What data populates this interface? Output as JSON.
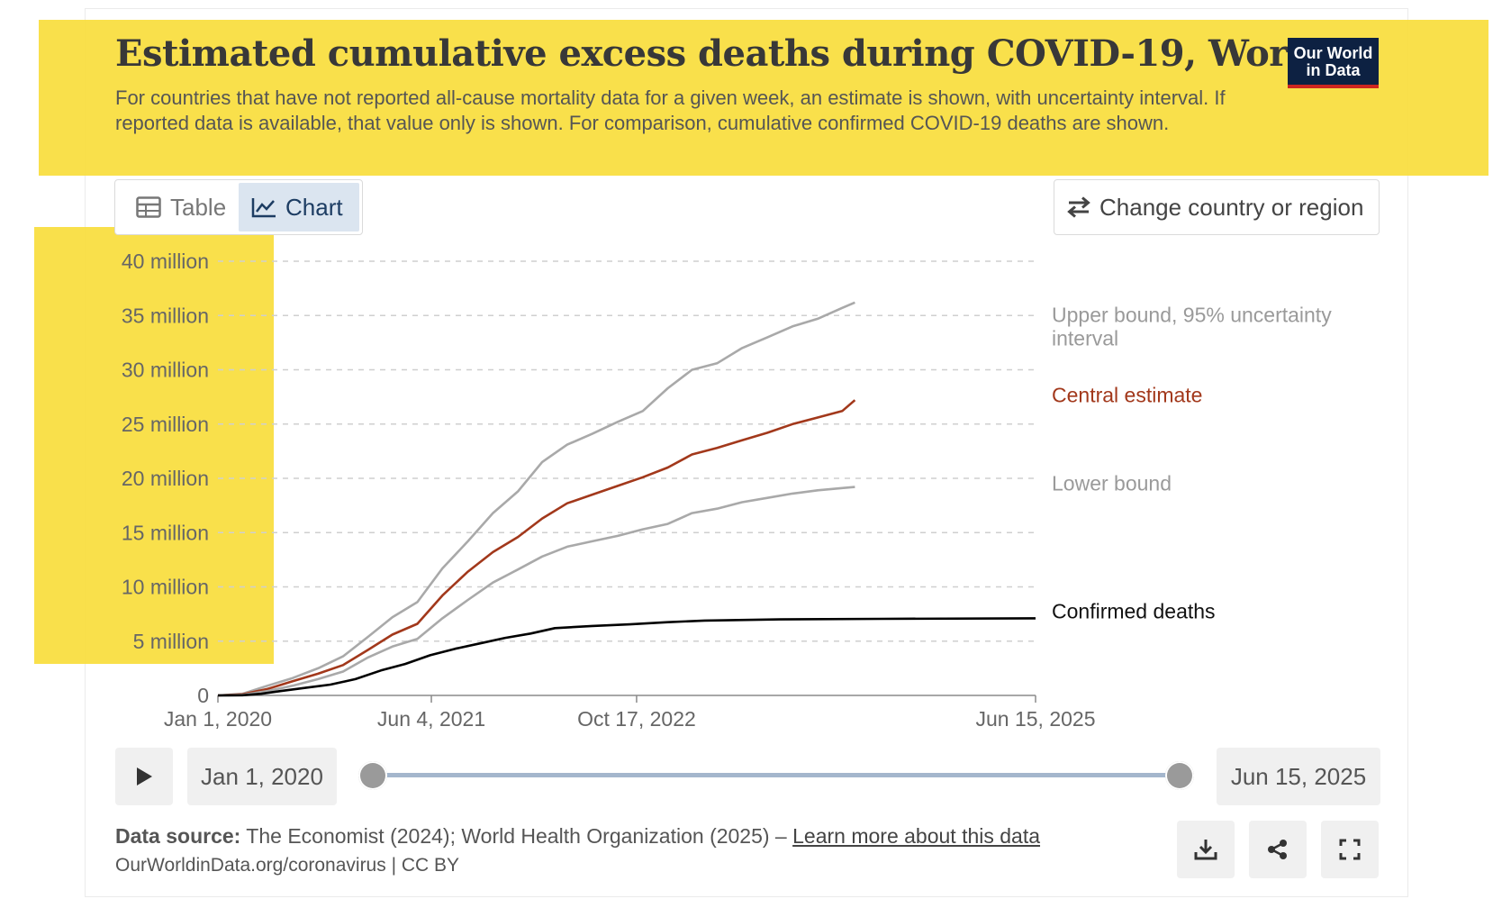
{
  "header": {
    "title": "Estimated cumulative excess deaths during COVID-19, World",
    "subtitle": "For countries that have not reported all-cause mortality data for a given week, an estimate is shown, with uncertainty interval. If reported data is available, that value only is shown. For comparison, cumulative confirmed COVID-19 deaths are shown.",
    "logo_line1": "Our World",
    "logo_line2": "in Data"
  },
  "tabs": {
    "table": "Table",
    "chart": "Chart",
    "active": "Chart"
  },
  "change_region_label": "Change country or region",
  "timeline": {
    "start": "Jan 1, 2020",
    "end": "Jun 15, 2025"
  },
  "footer": {
    "source_label": "Data source:",
    "source_text": " The Economist (2024); World Health Organization (2025) – ",
    "learn_more": "Learn more about this data",
    "credit": "OurWorldinData.org/coronavirus | CC BY"
  },
  "colors": {
    "highlight": "#f9dd3c",
    "upper": "#a9a9a9",
    "central": "#a2381b",
    "lower": "#a9a9a9",
    "confirmed": "#000000",
    "logo_bg": "#0d2142",
    "logo_accent": "#ce261e"
  },
  "icons": [
    "table-icon",
    "line-chart-icon",
    "swap-arrows-icon",
    "play-icon",
    "download-icon",
    "share-icon",
    "fullscreen-icon"
  ],
  "chart_data": {
    "type": "line",
    "title": "Estimated cumulative excess deaths during COVID-19, World",
    "xlabel": "",
    "ylabel": "",
    "x_type": "date",
    "xlim": [
      "2020-01-01",
      "2025-06-15"
    ],
    "ylim": [
      0,
      40000000
    ],
    "y_ticks": [
      0,
      5000000,
      10000000,
      15000000,
      20000000,
      25000000,
      30000000,
      35000000,
      40000000
    ],
    "y_tick_labels": [
      "0",
      "5 million",
      "10 million",
      "15 million",
      "20 million",
      "25 million",
      "30 million",
      "35 million",
      "40 million"
    ],
    "x_ticks": [
      "2020-01-01",
      "2021-06-04",
      "2022-10-17",
      "2025-06-15"
    ],
    "x_tick_labels": [
      "Jan 1, 2020",
      "Jun 4, 2021",
      "Oct 17, 2022",
      "Jun 15, 2025"
    ],
    "grid": true,
    "legend": "line-end labels on the right",
    "series": [
      {
        "name": "Upper bound, 95% uncertainty interval",
        "color": "#a9a9a9",
        "points": [
          [
            "2020-01-01",
            0
          ],
          [
            "2020-03-01",
            150000
          ],
          [
            "2020-05-01",
            900000
          ],
          [
            "2020-07-01",
            1600000
          ],
          [
            "2020-09-01",
            2500000
          ],
          [
            "2020-11-01",
            3600000
          ],
          [
            "2021-01-01",
            5400000
          ],
          [
            "2021-03-01",
            7200000
          ],
          [
            "2021-05-01",
            8600000
          ],
          [
            "2021-07-01",
            11700000
          ],
          [
            "2021-09-01",
            14200000
          ],
          [
            "2021-11-01",
            16800000
          ],
          [
            "2022-01-01",
            18800000
          ],
          [
            "2022-03-01",
            21500000
          ],
          [
            "2022-05-01",
            23100000
          ],
          [
            "2022-07-01",
            24100000
          ],
          [
            "2022-09-01",
            25200000
          ],
          [
            "2022-11-01",
            26200000
          ],
          [
            "2023-01-01",
            28300000
          ],
          [
            "2023-03-01",
            30000000
          ],
          [
            "2023-05-01",
            30600000
          ],
          [
            "2023-07-01",
            32000000
          ],
          [
            "2023-09-01",
            33000000
          ],
          [
            "2023-11-01",
            34000000
          ],
          [
            "2024-01-01",
            34700000
          ],
          [
            "2024-03-01",
            35700000
          ],
          [
            "2024-04-01",
            36200000
          ]
        ]
      },
      {
        "name": "Central estimate",
        "color": "#a2381b",
        "points": [
          [
            "2020-01-01",
            0
          ],
          [
            "2020-03-01",
            100000
          ],
          [
            "2020-05-01",
            600000
          ],
          [
            "2020-07-01",
            1300000
          ],
          [
            "2020-09-01",
            2000000
          ],
          [
            "2020-11-01",
            2800000
          ],
          [
            "2021-01-01",
            4200000
          ],
          [
            "2021-03-01",
            5600000
          ],
          [
            "2021-05-01",
            6600000
          ],
          [
            "2021-07-01",
            9200000
          ],
          [
            "2021-09-01",
            11400000
          ],
          [
            "2021-11-01",
            13200000
          ],
          [
            "2022-01-01",
            14600000
          ],
          [
            "2022-03-01",
            16300000
          ],
          [
            "2022-05-01",
            17700000
          ],
          [
            "2022-07-01",
            18500000
          ],
          [
            "2022-09-01",
            19300000
          ],
          [
            "2022-11-01",
            20100000
          ],
          [
            "2023-01-01",
            21000000
          ],
          [
            "2023-03-01",
            22200000
          ],
          [
            "2023-05-01",
            22800000
          ],
          [
            "2023-07-01",
            23500000
          ],
          [
            "2023-09-01",
            24200000
          ],
          [
            "2023-11-01",
            25000000
          ],
          [
            "2024-01-01",
            25600000
          ],
          [
            "2024-03-01",
            26200000
          ],
          [
            "2024-04-01",
            27200000
          ]
        ]
      },
      {
        "name": "Lower bound",
        "color": "#a9a9a9",
        "points": [
          [
            "2020-01-01",
            0
          ],
          [
            "2020-03-01",
            50000
          ],
          [
            "2020-05-01",
            400000
          ],
          [
            "2020-07-01",
            900000
          ],
          [
            "2020-09-01",
            1500000
          ],
          [
            "2020-11-01",
            2200000
          ],
          [
            "2021-01-01",
            3500000
          ],
          [
            "2021-03-01",
            4500000
          ],
          [
            "2021-05-01",
            5200000
          ],
          [
            "2021-07-01",
            7100000
          ],
          [
            "2021-09-01",
            8800000
          ],
          [
            "2021-11-01",
            10400000
          ],
          [
            "2022-01-01",
            11600000
          ],
          [
            "2022-03-01",
            12800000
          ],
          [
            "2022-05-01",
            13700000
          ],
          [
            "2022-07-01",
            14200000
          ],
          [
            "2022-09-01",
            14700000
          ],
          [
            "2022-11-01",
            15300000
          ],
          [
            "2023-01-01",
            15800000
          ],
          [
            "2023-03-01",
            16800000
          ],
          [
            "2023-05-01",
            17200000
          ],
          [
            "2023-07-01",
            17800000
          ],
          [
            "2023-09-01",
            18200000
          ],
          [
            "2023-11-01",
            18600000
          ],
          [
            "2024-01-01",
            18900000
          ],
          [
            "2024-03-01",
            19100000
          ],
          [
            "2024-04-01",
            19200000
          ]
        ]
      },
      {
        "name": "Confirmed deaths",
        "color": "#000000",
        "points": [
          [
            "2020-01-01",
            0
          ],
          [
            "2020-03-01",
            20000
          ],
          [
            "2020-04-15",
            150000
          ],
          [
            "2020-06-01",
            400000
          ],
          [
            "2020-08-01",
            700000
          ],
          [
            "2020-10-01",
            1000000
          ],
          [
            "2020-12-01",
            1500000
          ],
          [
            "2021-02-01",
            2300000
          ],
          [
            "2021-04-01",
            2900000
          ],
          [
            "2021-06-01",
            3700000
          ],
          [
            "2021-08-01",
            4300000
          ],
          [
            "2021-10-01",
            4800000
          ],
          [
            "2021-12-01",
            5300000
          ],
          [
            "2022-02-01",
            5700000
          ],
          [
            "2022-04-01",
            6200000
          ],
          [
            "2022-07-01",
            6400000
          ],
          [
            "2022-10-01",
            6550000
          ],
          [
            "2023-01-01",
            6750000
          ],
          [
            "2023-04-01",
            6900000
          ],
          [
            "2023-10-01",
            7000000
          ],
          [
            "2024-06-01",
            7050000
          ],
          [
            "2025-06-15",
            7100000
          ]
        ]
      }
    ]
  }
}
